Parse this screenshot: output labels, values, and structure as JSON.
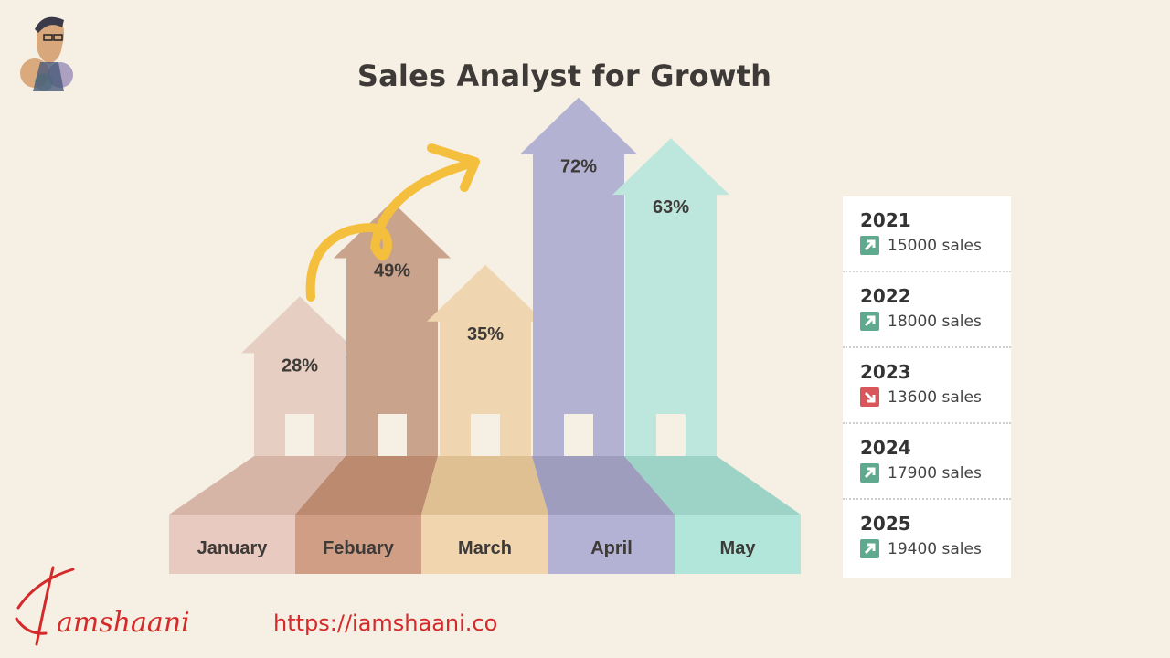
{
  "title": "Sales Analyst for Growth",
  "chart_data": {
    "type": "bar",
    "title": "Sales Analyst for Growth",
    "categories": [
      "January",
      "Febuary",
      "March",
      "April",
      "May"
    ],
    "values": [
      28,
      49,
      35,
      72,
      63
    ],
    "value_labels": [
      "28%",
      "49%",
      "35%",
      "72%",
      "63%"
    ],
    "unit": "%",
    "colors": {
      "shaft": [
        "#e6cfc2",
        "#c9a38b",
        "#efd6b0",
        "#b3b2d2",
        "#bde7dc"
      ],
      "floor": [
        "#d6b5a7",
        "#bc8a6e",
        "#dfc093",
        "#9e9dbe",
        "#9dd3c7"
      ],
      "label": [
        "#e8cac0",
        "#cf9e85",
        "#f0d5ae",
        "#b3b1d4",
        "#b3e6da"
      ],
      "trend_arrow": "#f5bf3e"
    }
  },
  "sales_panel": [
    {
      "year": "2021",
      "sales": "15000 sales",
      "trend": "up",
      "icon": "arrow-up-right-icon"
    },
    {
      "year": "2022",
      "sales": "18000 sales",
      "trend": "up",
      "icon": "arrow-up-right-icon"
    },
    {
      "year": "2023",
      "sales": "13600 sales",
      "trend": "down",
      "icon": "arrow-down-right-icon"
    },
    {
      "year": "2024",
      "sales": "17900 sales",
      "trend": "up",
      "icon": "arrow-up-right-icon"
    },
    {
      "year": "2025",
      "sales": "19400 sales",
      "trend": "up",
      "icon": "arrow-up-right-icon"
    }
  ],
  "trend_colors": {
    "up": "#5fa98f",
    "down": "#d9575a"
  },
  "footer": {
    "signature": "Iamshaani",
    "url": "https://iamshaani.co",
    "color": "#d42a2a"
  }
}
